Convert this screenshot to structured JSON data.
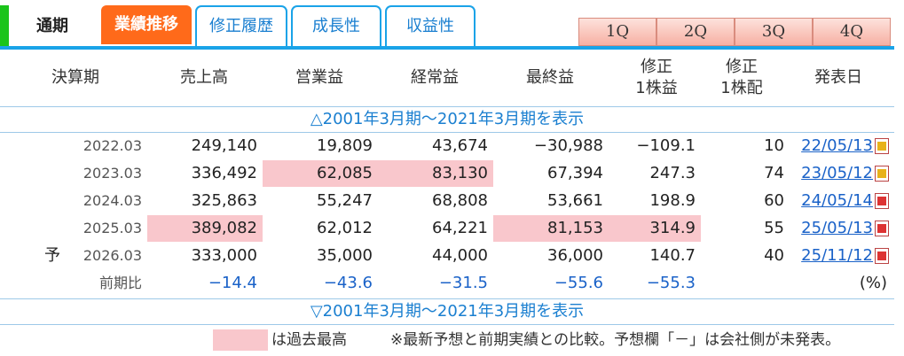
{
  "tabs": {
    "annual": "通期",
    "results": "業績推移",
    "revisions": "修正履歴",
    "growth": "成長性",
    "profitability": "収益性",
    "quarters": [
      "1Q",
      "2Q",
      "3Q",
      "4Q"
    ]
  },
  "colors": {
    "accent_orange": "#ff6a1a",
    "accent_blue": "#1aa3e8",
    "highlight": "#f9c7cc",
    "green_mark": "#1bc41b"
  },
  "table": {
    "headers": {
      "period": "決算期",
      "sales": "売上高",
      "operating": "営業益",
      "ordinary": "経常益",
      "net": "最終益",
      "eps_1": "修正",
      "eps_2": "1株益",
      "div_1": "修正",
      "div_2": "1株配",
      "date": "発表日"
    },
    "toggle_top": "△2001年3月期～2021年3月期を表示",
    "toggle_bottom": "▽2001年3月期～2021年3月期を表示",
    "rows": [
      {
        "prefix": "",
        "period": "2022.03",
        "sales": "249,140",
        "operating": "19,809",
        "ordinary": "43,674",
        "net": "−30,988",
        "eps": "−109.1",
        "div": "10",
        "date": "22/05/13"
      },
      {
        "prefix": "",
        "period": "2023.03",
        "sales": "336,492",
        "operating": "62,085",
        "ordinary": "83,130",
        "net": "67,394",
        "eps": "247.3",
        "div": "74",
        "date": "23/05/12"
      },
      {
        "prefix": "",
        "period": "2024.03",
        "sales": "325,863",
        "operating": "55,247",
        "ordinary": "68,808",
        "net": "53,661",
        "eps": "198.9",
        "div": "60",
        "date": "24/05/14"
      },
      {
        "prefix": "",
        "period": "2025.03",
        "sales": "389,082",
        "operating": "62,012",
        "ordinary": "64,221",
        "net": "81,153",
        "eps": "314.9",
        "div": "55",
        "date": "25/05/13"
      },
      {
        "prefix": "予",
        "period": "2026.03",
        "sales": "333,000",
        "operating": "35,000",
        "ordinary": "44,000",
        "net": "36,000",
        "eps": "140.7",
        "div": "40",
        "date": "25/11/12"
      }
    ],
    "comparison": {
      "label": "前期比",
      "sales": "−14.4",
      "operating": "−43.6",
      "ordinary": "−31.5",
      "net": "−55.6",
      "eps": "−55.3",
      "unit": "(%)"
    }
  },
  "legend": {
    "swatch_label": "は過去最高",
    "note": "※最新予想と前期実績との比較。予想欄「－」は会社側が未発表。"
  }
}
